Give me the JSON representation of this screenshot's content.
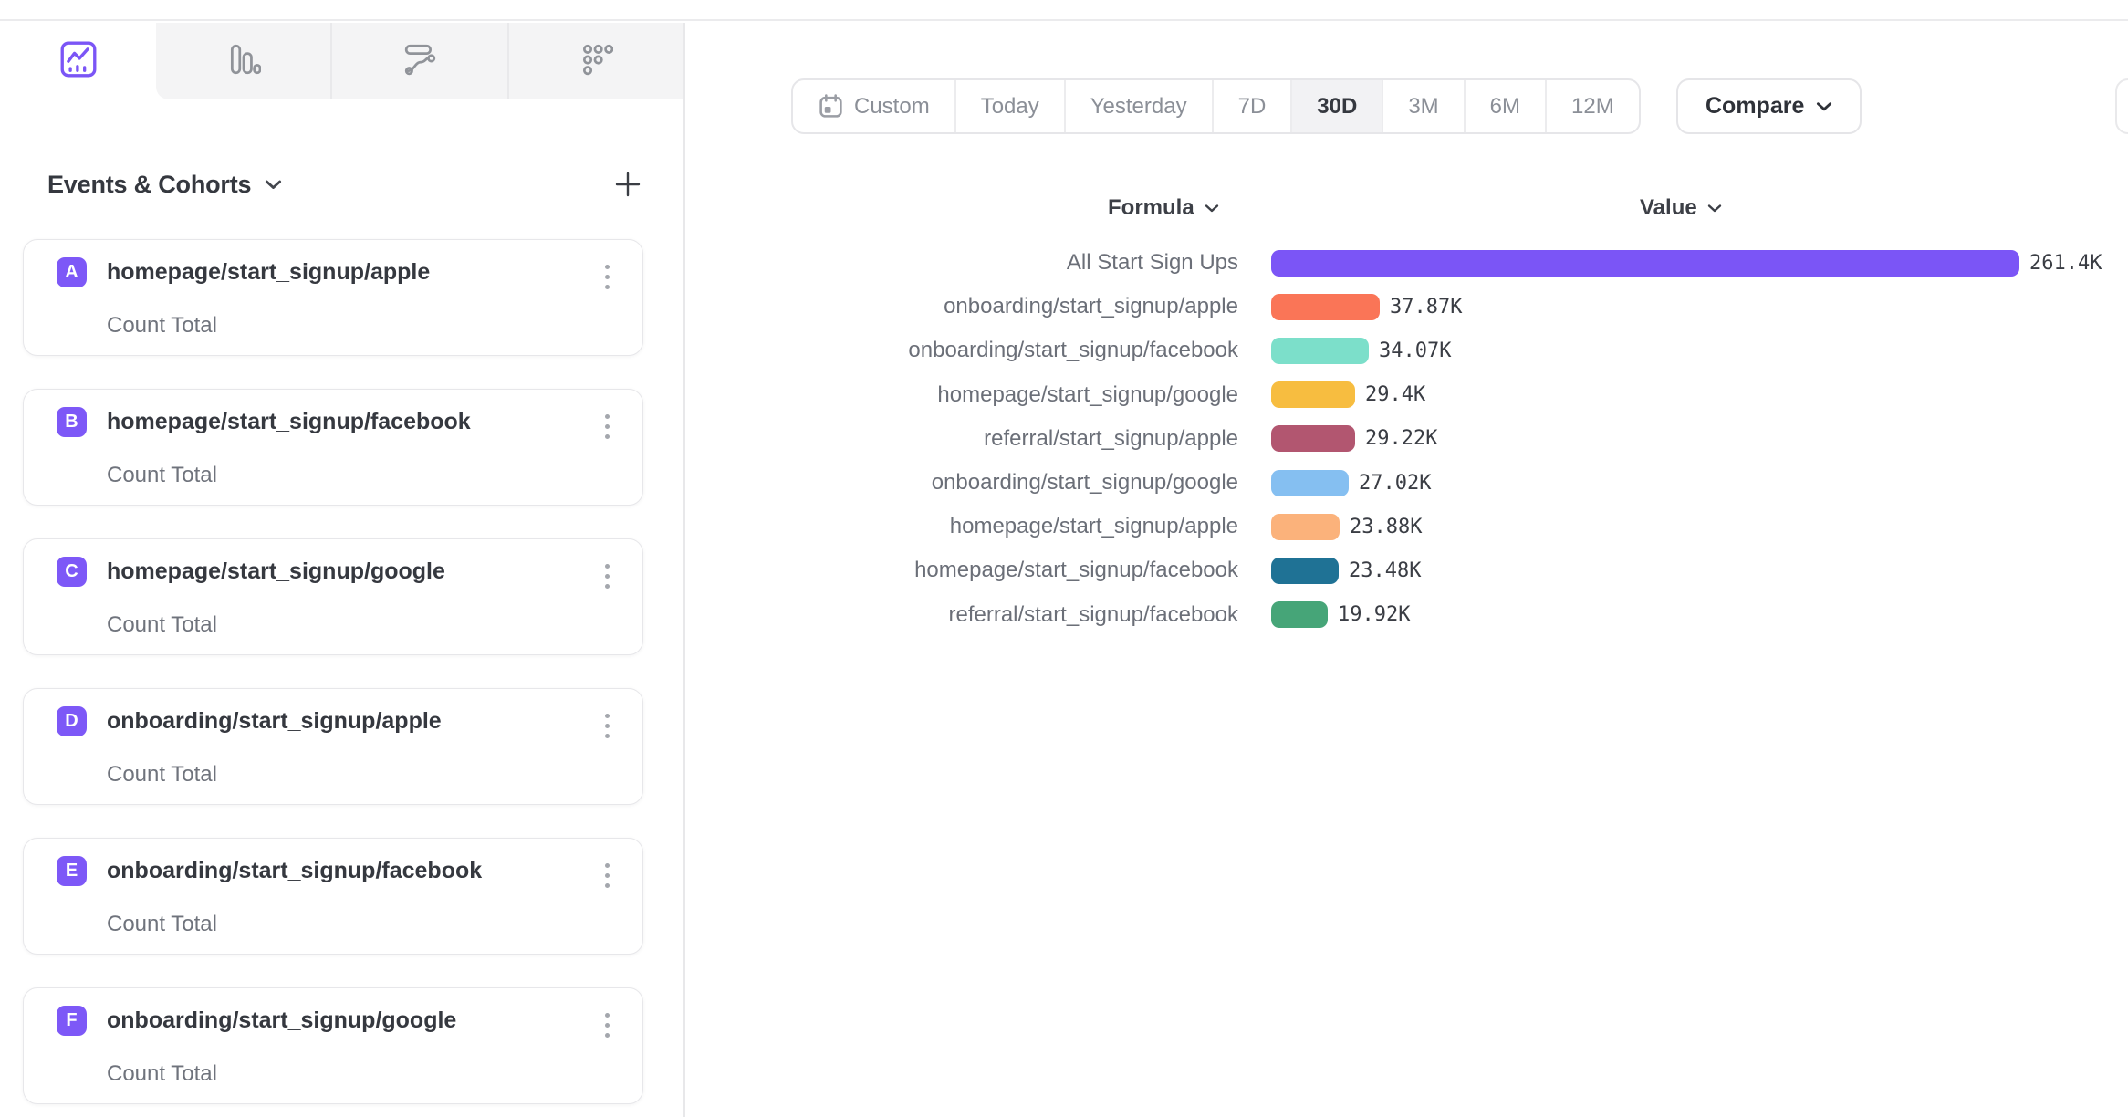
{
  "chart_tabs": [
    {
      "name": "insights",
      "icon": "line-chart-icon",
      "active": true
    },
    {
      "name": "bar-chart",
      "icon": "bar-chart-icon",
      "active": false
    },
    {
      "name": "flows",
      "icon": "flows-icon",
      "active": false
    },
    {
      "name": "retention",
      "icon": "retention-grid-icon",
      "active": false
    }
  ],
  "sidebar": {
    "title": "Events & Cohorts",
    "items": [
      {
        "letter": "A",
        "title": "homepage/start_signup/apple",
        "subtitle": "Count Total"
      },
      {
        "letter": "B",
        "title": "homepage/start_signup/facebook",
        "subtitle": "Count Total"
      },
      {
        "letter": "C",
        "title": "homepage/start_signup/google",
        "subtitle": "Count Total"
      },
      {
        "letter": "D",
        "title": "onboarding/start_signup/apple",
        "subtitle": "Count Total"
      },
      {
        "letter": "E",
        "title": "onboarding/start_signup/facebook",
        "subtitle": "Count Total"
      },
      {
        "letter": "F",
        "title": "onboarding/start_signup/google",
        "subtitle": "Count Total"
      }
    ]
  },
  "date_controls": {
    "options": [
      "Custom",
      "Today",
      "Yesterday",
      "7D",
      "30D",
      "3M",
      "6M",
      "12M"
    ],
    "selected": "30D",
    "compare_label": "Compare"
  },
  "chart_data": {
    "type": "bar",
    "orientation": "horizontal",
    "column_headers": {
      "formula": "Formula",
      "value": "Value"
    },
    "xlim": [
      0,
      261400
    ],
    "rows": [
      {
        "label": "All Start Sign Ups",
        "value": 261400,
        "display": "261.4K",
        "color": "#7B55F6"
      },
      {
        "label": "onboarding/start_signup/apple",
        "value": 37870,
        "display": "37.87K",
        "color": "#FA7557"
      },
      {
        "label": "onboarding/start_signup/facebook",
        "value": 34070,
        "display": "34.07K",
        "color": "#7CDFCA"
      },
      {
        "label": "homepage/start_signup/google",
        "value": 29400,
        "display": "29.4K",
        "color": "#F7BD40"
      },
      {
        "label": "referral/start_signup/apple",
        "value": 29220,
        "display": "29.22K",
        "color": "#B25670"
      },
      {
        "label": "onboarding/start_signup/google",
        "value": 27020,
        "display": "27.02K",
        "color": "#85BFF1"
      },
      {
        "label": "homepage/start_signup/apple",
        "value": 23880,
        "display": "23.88K",
        "color": "#FBB27B"
      },
      {
        "label": "homepage/start_signup/facebook",
        "value": 23480,
        "display": "23.48K",
        "color": "#1F7295"
      },
      {
        "label": "referral/start_signup/facebook",
        "value": 19920,
        "display": "19.92K",
        "color": "#46A578"
      }
    ]
  },
  "colors": {
    "accent": "#7B55F6",
    "badge": "#7D58F7"
  }
}
